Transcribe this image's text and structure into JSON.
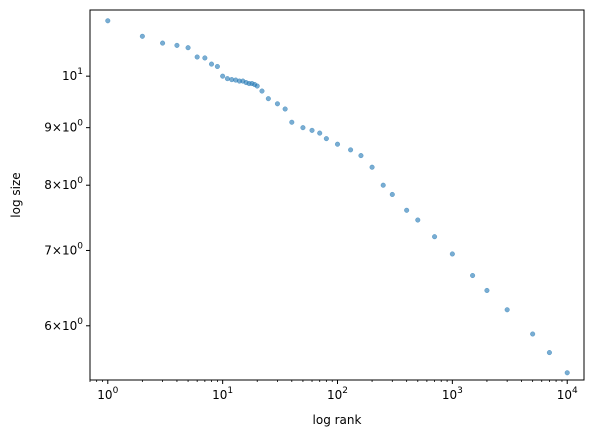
{
  "chart_data": {
    "type": "scatter",
    "title": "",
    "xlabel": "log rank",
    "ylabel": "log size",
    "x_scale": "log",
    "y_scale": "log",
    "xlim": [
      0.7,
      14000
    ],
    "ylim": [
      5.37,
      11.45
    ],
    "grid": false,
    "legend": "none",
    "marker_color": "#1f77b4",
    "marker_alpha": 0.6,
    "x_ticks": [
      {
        "value": 1,
        "label": "10^0"
      },
      {
        "value": 10,
        "label": "10^1"
      },
      {
        "value": 100,
        "label": "10^2"
      },
      {
        "value": 1000,
        "label": "10^3"
      },
      {
        "value": 10000,
        "label": "10^4"
      }
    ],
    "y_ticks": [
      {
        "value": 6,
        "label": "6×10^0"
      },
      {
        "value": 7,
        "label": "7×10^0"
      },
      {
        "value": 8,
        "label": "8×10^0"
      },
      {
        "value": 9,
        "label": "9×10^0"
      },
      {
        "value": 10,
        "label": "10^1"
      }
    ],
    "points": {
      "x": [
        1,
        2,
        3,
        4,
        5,
        6,
        7,
        8,
        9,
        10,
        11,
        12,
        13,
        14,
        15,
        16,
        17,
        18,
        19,
        20,
        22,
        25,
        30,
        35,
        40,
        50,
        60,
        70,
        80,
        100,
        130,
        160,
        200,
        250,
        300,
        400,
        500,
        700,
        1000,
        1500,
        2000,
        3000,
        5000,
        7000,
        10000
      ],
      "y": [
        11.2,
        10.85,
        10.7,
        10.65,
        10.6,
        10.4,
        10.38,
        10.25,
        10.2,
        10.0,
        9.95,
        9.93,
        9.92,
        9.9,
        9.9,
        9.87,
        9.85,
        9.85,
        9.83,
        9.8,
        9.7,
        9.55,
        9.45,
        9.35,
        9.1,
        9.0,
        8.95,
        8.9,
        8.8,
        8.7,
        8.6,
        8.5,
        8.3,
        8.0,
        7.85,
        7.6,
        7.45,
        7.2,
        6.95,
        6.65,
        6.45,
        6.2,
        5.9,
        5.68,
        5.45
      ]
    }
  }
}
